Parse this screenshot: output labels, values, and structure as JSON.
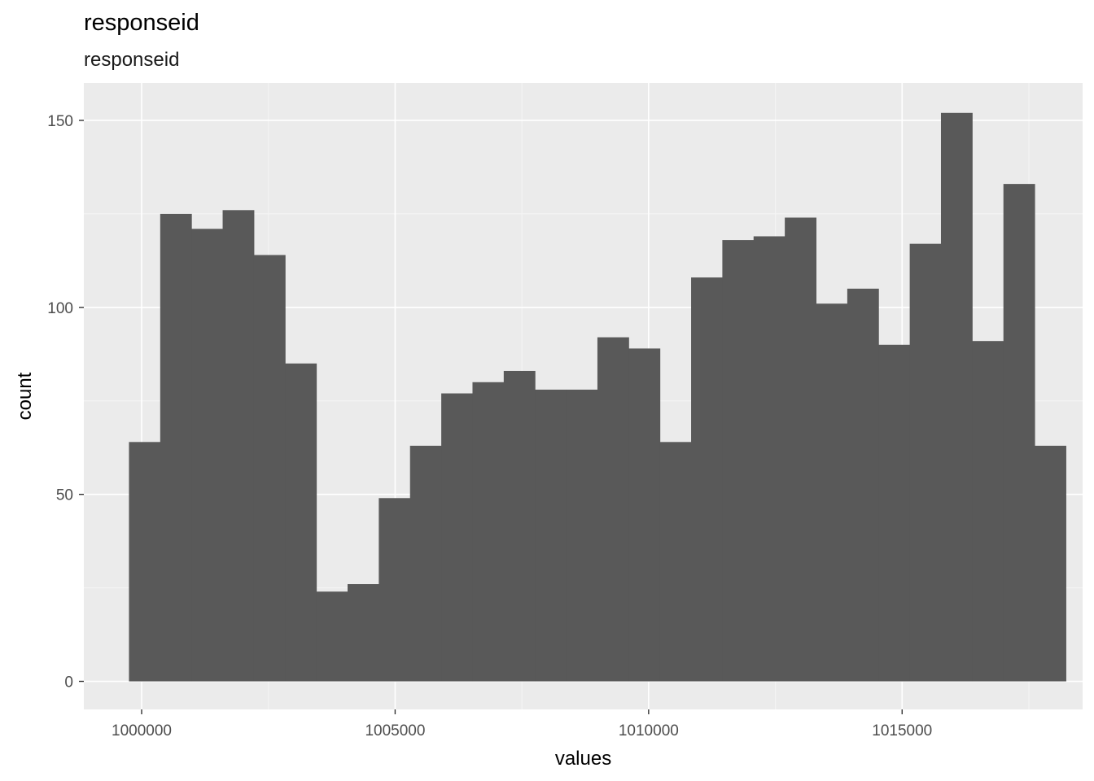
{
  "chart_data": {
    "type": "bar",
    "title": "responseid",
    "subtitle": "responseid",
    "xlabel": "values",
    "ylabel": "count",
    "xlim": [
      998860,
      1018560
    ],
    "ylim": [
      -7.5,
      160
    ],
    "x_ticks": [
      1000000,
      1005000,
      1010000,
      1015000
    ],
    "x_tick_labels": [
      "1000000",
      "1005000",
      "1010000",
      "1015000"
    ],
    "y_ticks": [
      0,
      50,
      100,
      150
    ],
    "y_tick_labels": [
      "0",
      "50",
      "100",
      "150"
    ],
    "bin_width": 616,
    "bin_starts": [
      999750,
      1000366,
      1000982,
      1001598,
      1002214,
      1002830,
      1003446,
      1004062,
      1004678,
      1005294,
      1005910,
      1006526,
      1007142,
      1007758,
      1008374,
      1008990,
      1009606,
      1010222,
      1010838,
      1011454,
      1012070,
      1012686,
      1013302,
      1013918,
      1014534,
      1015150,
      1015766,
      1016382,
      1016998,
      1017614
    ],
    "values": [
      64,
      125,
      121,
      126,
      114,
      85,
      24,
      26,
      49,
      63,
      77,
      80,
      83,
      78,
      78,
      92,
      89,
      64,
      108,
      118,
      119,
      124,
      101,
      105,
      90,
      117,
      152,
      91,
      133,
      63
    ],
    "grid": true,
    "colors": {
      "bar": "#595959",
      "panel": "#ebebeb",
      "grid_major": "#ffffff",
      "grid_minor": "#f5f5f5"
    }
  }
}
